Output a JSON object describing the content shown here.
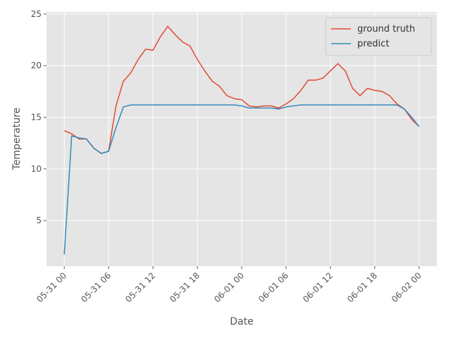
{
  "chart_data": {
    "type": "line",
    "xlabel": "Date",
    "ylabel": "Temperature",
    "x": [
      "05-31 00",
      "05-31 01",
      "05-31 02",
      "05-31 03",
      "05-31 04",
      "05-31 05",
      "05-31 06",
      "05-31 07",
      "05-31 08",
      "05-31 09",
      "05-31 10",
      "05-31 11",
      "05-31 12",
      "05-31 13",
      "05-31 14",
      "05-31 15",
      "05-31 16",
      "05-31 17",
      "05-31 18",
      "05-31 19",
      "05-31 20",
      "05-31 21",
      "05-31 22",
      "05-31 23",
      "06-01 00",
      "06-01 01",
      "06-01 02",
      "06-01 03",
      "06-01 04",
      "06-01 05",
      "06-01 06",
      "06-01 07",
      "06-01 08",
      "06-01 09",
      "06-01 10",
      "06-01 11",
      "06-01 12",
      "06-01 13",
      "06-01 14",
      "06-01 15",
      "06-01 16",
      "06-01 17",
      "06-01 18",
      "06-01 19",
      "06-01 20",
      "06-01 21",
      "06-01 22",
      "06-01 23",
      "06-02 00"
    ],
    "series": [
      {
        "name": "ground truth",
        "color": "#E24A33",
        "values": [
          13.7,
          13.4,
          12.9,
          12.9,
          12.0,
          11.5,
          11.7,
          16.1,
          18.5,
          19.3,
          20.6,
          21.6,
          21.5,
          22.8,
          23.8,
          23.0,
          22.3,
          21.9,
          20.6,
          19.5,
          18.5,
          18.0,
          17.1,
          16.8,
          16.7,
          16.1,
          16.0,
          16.1,
          16.1,
          15.9,
          16.3,
          16.8,
          17.6,
          18.6,
          18.6,
          18.8,
          19.5,
          20.2,
          19.5,
          17.8,
          17.1,
          17.8,
          17.6,
          17.5,
          17.1,
          16.3,
          15.8,
          14.8,
          14.1
        ]
      },
      {
        "name": "predict",
        "color": "#348ABD",
        "values": [
          1.7,
          13.2,
          13.0,
          12.9,
          12.0,
          11.5,
          11.7,
          14.0,
          16.0,
          16.2,
          16.2,
          16.2,
          16.2,
          16.2,
          16.2,
          16.2,
          16.2,
          16.2,
          16.2,
          16.2,
          16.2,
          16.2,
          16.2,
          16.2,
          16.1,
          15.9,
          15.9,
          15.9,
          15.9,
          15.8,
          16.0,
          16.1,
          16.2,
          16.2,
          16.2,
          16.2,
          16.2,
          16.2,
          16.2,
          16.2,
          16.2,
          16.2,
          16.2,
          16.2,
          16.2,
          16.2,
          15.8,
          15.0,
          14.1
        ]
      }
    ],
    "xticks": [
      "05-31 00",
      "05-31 06",
      "05-31 12",
      "05-31 18",
      "06-01 00",
      "06-01 06",
      "06-01 12",
      "06-01 18",
      "06-02 00"
    ],
    "ylim": [
      0.58,
      25.2
    ],
    "yticks": [
      5,
      10,
      15,
      20,
      25
    ],
    "grid": true,
    "legend": "upper right"
  }
}
